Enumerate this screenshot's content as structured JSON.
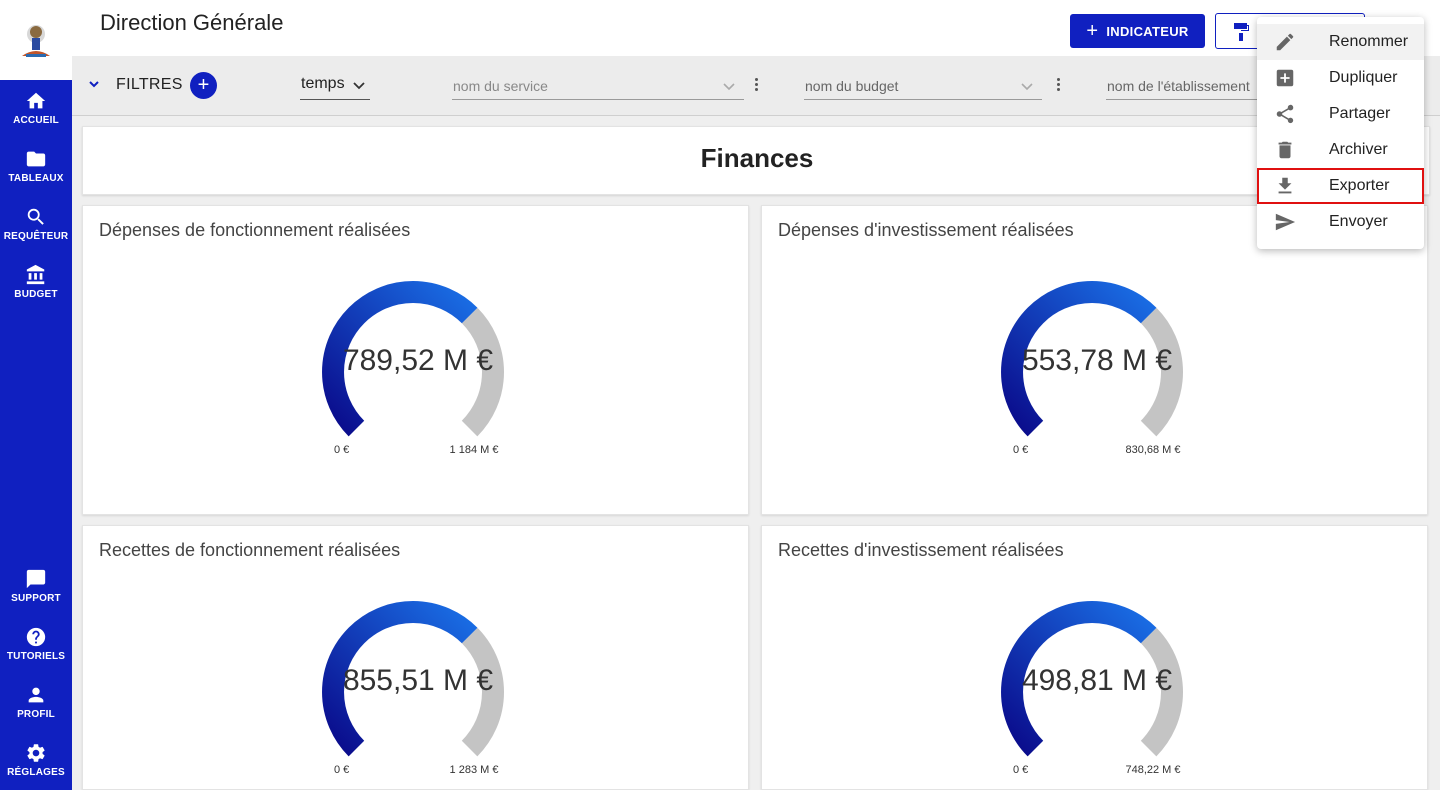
{
  "sidebar": {
    "items": [
      {
        "label": "ACCUEIL",
        "icon": "home-icon"
      },
      {
        "label": "TABLEAUX",
        "icon": "folder-icon"
      },
      {
        "label": "REQUÊTEUR",
        "icon": "search-icon"
      },
      {
        "label": "BUDGET",
        "icon": "bank-icon"
      },
      {
        "label": "SUPPORT",
        "icon": "chat-icon"
      },
      {
        "label": "TUTORIELS",
        "icon": "help-icon"
      },
      {
        "label": "PROFIL",
        "icon": "person-icon"
      },
      {
        "label": "RÉGLAGES",
        "icon": "gear-icon"
      }
    ]
  },
  "header": {
    "title": "Direction Générale",
    "indicateur_label": "INDICATEUR"
  },
  "filters": {
    "label": "FILTRES",
    "temps_value": "temps",
    "service_placeholder": "nom du service",
    "budget_placeholder": "nom du budget",
    "etablissement_placeholder": "nom de l'établissement"
  },
  "section": {
    "title": "Finances"
  },
  "cards": [
    {
      "title": "Dépenses de fonctionnement réalisées",
      "value": "789,52 M €",
      "min": "0 €",
      "max": "1 184 M €",
      "fraction": 0.667
    },
    {
      "title": "Dépenses d'investissement réalisées",
      "value": "553,78 M €",
      "min": "0 €",
      "max": "830,68 M €",
      "fraction": 0.667
    },
    {
      "title": "Recettes de fonctionnement réalisées",
      "value": "855,51 M €",
      "min": "0 €",
      "max": "1 283 M €",
      "fraction": 0.667
    },
    {
      "title": "Recettes d'investissement réalisées",
      "value": "498,81 M €",
      "min": "0 €",
      "max": "748,22 M €",
      "fraction": 0.667
    }
  ],
  "menu": {
    "items": [
      {
        "label": "Renommer",
        "icon": "pencil-icon"
      },
      {
        "label": "Dupliquer",
        "icon": "duplicate-icon"
      },
      {
        "label": "Partager",
        "icon": "share-icon"
      },
      {
        "label": "Archiver",
        "icon": "trash-icon"
      },
      {
        "label": "Exporter",
        "icon": "download-icon"
      },
      {
        "label": "Envoyer",
        "icon": "send-icon"
      }
    ]
  },
  "colors": {
    "primary": "#1020c0",
    "gauge_start": "#0a0a8a",
    "gauge_end": "#1a6fe6",
    "gauge_track": "#c4c4c4",
    "highlight_border": "#e01010"
  }
}
